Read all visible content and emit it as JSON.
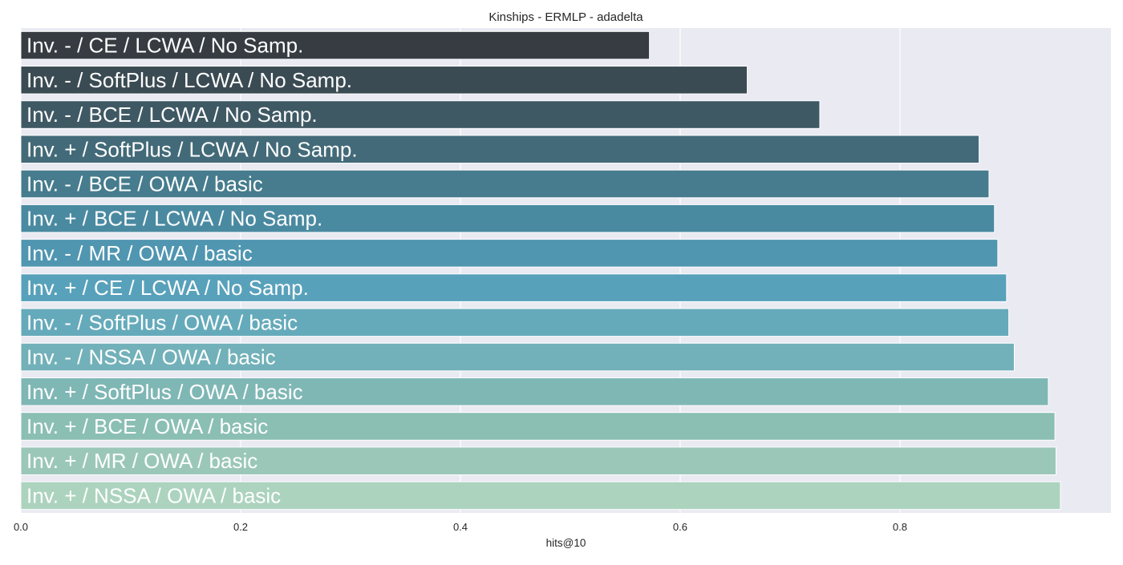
{
  "chart_data": {
    "type": "bar",
    "orientation": "horizontal",
    "title": "Kinships - ERMLP - adadelta",
    "xlabel": "hits@10",
    "ylabel": "",
    "xlim": [
      0,
      0.992
    ],
    "xticks": [
      0.0,
      0.2,
      0.4,
      0.6,
      0.8
    ],
    "xtick_labels": [
      "0.0",
      "0.2",
      "0.4",
      "0.6",
      "0.8"
    ],
    "grid": true,
    "categories": [
      "Inv. - / CE / LCWA / No Samp.",
      "Inv. - / SoftPlus / LCWA / No Samp.",
      "Inv. - / BCE / LCWA / No Samp.",
      "Inv. + / SoftPlus / LCWA / No Samp.",
      "Inv. - / BCE / OWA / basic",
      "Inv. + / BCE / LCWA / No Samp.",
      "Inv. - / MR / OWA / basic",
      "Inv. + / CE / LCWA / No Samp.",
      "Inv. - / SoftPlus / OWA / basic",
      "Inv. - / NSSA / OWA / basic",
      "Inv. + / SoftPlus / OWA / basic",
      "Inv. + / BCE / OWA / basic",
      "Inv. + / MR / OWA / basic",
      "Inv. + / NSSA / OWA / basic"
    ],
    "values": [
      0.572,
      0.661,
      0.727,
      0.872,
      0.881,
      0.886,
      0.889,
      0.897,
      0.899,
      0.904,
      0.935,
      0.941,
      0.942,
      0.946
    ],
    "colors": [
      "#363c42",
      "#3b4b53",
      "#3f5964",
      "#436a78",
      "#467c8d",
      "#4a8aa1",
      "#5096b1",
      "#58a1bb",
      "#65aabb",
      "#72b1b9",
      "#7fb7b5",
      "#8bbfb4",
      "#9bc7b9",
      "#acd3be"
    ],
    "background_color": "#eaeaf2",
    "grid_color": "#ffffff"
  }
}
